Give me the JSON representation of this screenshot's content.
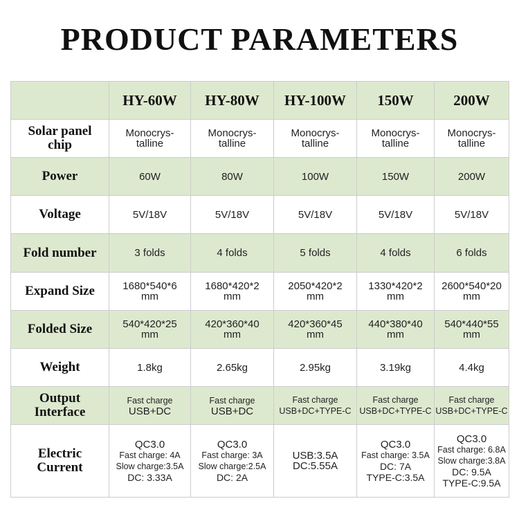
{
  "title": "PRODUCT PARAMETERS",
  "table": {
    "columns": [
      "HY-60W",
      "HY-80W",
      "HY-100W",
      "150W",
      "200W"
    ],
    "rows": [
      {
        "label": [
          "Solar panel",
          "chip"
        ],
        "cells": [
          [
            "Monocrys-",
            "talline"
          ],
          [
            "Monocrys-",
            "talline"
          ],
          [
            "Monocrys-",
            "talline"
          ],
          [
            "Monocrys-",
            "talline"
          ],
          [
            "Monocrys-",
            "talline"
          ]
        ]
      },
      {
        "label": [
          "Power"
        ],
        "cells": [
          [
            "60W"
          ],
          [
            "80W"
          ],
          [
            "100W"
          ],
          [
            "150W"
          ],
          [
            "200W"
          ]
        ]
      },
      {
        "label": [
          "Voltage"
        ],
        "cells": [
          [
            "5V/18V"
          ],
          [
            "5V/18V"
          ],
          [
            "5V/18V"
          ],
          [
            "5V/18V"
          ],
          [
            "5V/18V"
          ]
        ]
      },
      {
        "label": [
          "Fold number"
        ],
        "cells": [
          [
            "3 folds"
          ],
          [
            "4 folds"
          ],
          [
            "5 folds"
          ],
          [
            "4 folds"
          ],
          [
            "6 folds"
          ]
        ]
      },
      {
        "label": [
          "Expand Size"
        ],
        "cells": [
          [
            "1680*540*6",
            "mm"
          ],
          [
            "1680*420*2",
            "mm"
          ],
          [
            "2050*420*2",
            "mm"
          ],
          [
            "1330*420*2",
            "mm"
          ],
          [
            "2600*540*20",
            "mm"
          ]
        ]
      },
      {
        "label": [
          "Folded Size"
        ],
        "cells": [
          [
            "540*420*25",
            "mm"
          ],
          [
            "420*360*40",
            "mm"
          ],
          [
            "420*360*45",
            "mm"
          ],
          [
            "440*380*40",
            "mm"
          ],
          [
            "540*440*55",
            "mm"
          ]
        ]
      },
      {
        "label": [
          "Weight"
        ],
        "cells": [
          [
            "1.8kg"
          ],
          [
            "2.65kg"
          ],
          [
            "2.95kg"
          ],
          [
            "3.19kg"
          ],
          [
            "4.4kg"
          ]
        ]
      },
      {
        "label": [
          "Output",
          "Interface"
        ],
        "cells": [
          [
            "Fast charge",
            "USB+DC"
          ],
          [
            "Fast charge",
            "USB+DC"
          ],
          [
            "Fast charge",
            "USB+DC+TYPE-C"
          ],
          [
            "Fast charge",
            "USB+DC+TYPE-C"
          ],
          [
            "Fast charge",
            "USB+DC+TYPE-C"
          ]
        ]
      },
      {
        "label": [
          "Electric",
          "Current"
        ],
        "cells": [
          [
            "QC3.0",
            "Fast charge: 4A",
            "Slow charge:3.5A",
            "DC: 3.33A"
          ],
          [
            "QC3.0",
            "Fast charge: 3A",
            "Slow charge:2.5A",
            "DC: 2A"
          ],
          [
            "USB:3.5A",
            "DC:5.55A"
          ],
          [
            "QC3.0",
            "Fast charge: 3.5A",
            "DC: 7A",
            "TYPE-C:3.5A"
          ],
          [
            "QC3.0",
            "Fast charge: 6.8A",
            "Slow charge:3.8A",
            "DC: 9.5A",
            "TYPE-C:9.5A"
          ]
        ]
      }
    ]
  }
}
